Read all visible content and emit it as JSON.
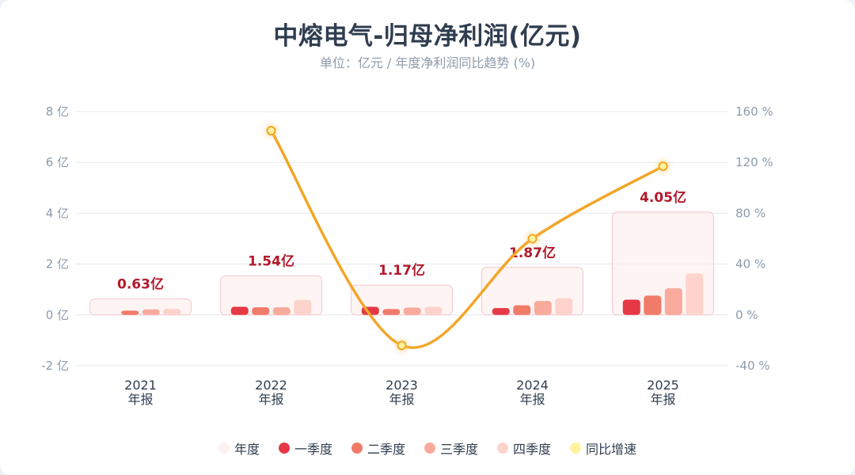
{
  "title": "中熔电气-归母净利润(亿元)",
  "subtitle": "单位：亿元 / 年度净利润同比趋势 (%)",
  "colors": {
    "annual_fill": "#fdeeee",
    "annual_stroke": "#f4c7cc",
    "q1": "#e63946",
    "q2": "#f07b68",
    "q3": "#f8ab9c",
    "q4": "#fdd3cc",
    "growth_line": "#f2a628",
    "growth_dot_fill": "#fff3a0",
    "annual_label": "#b3192b",
    "axis_label": "#8e9bab",
    "grid": "#e4e8ee"
  },
  "chart_data": {
    "type": "bar",
    "categories": [
      "2021",
      "2022",
      "2023",
      "2024",
      "2025"
    ],
    "category_sublabel": "年报",
    "left_axis": {
      "ticks": [
        "-2 亿",
        "0 亿",
        "2 亿",
        "4 亿",
        "6 亿",
        "8 亿"
      ],
      "ylim": [
        -2,
        8
      ]
    },
    "right_axis": {
      "ticks": [
        "-40 %",
        "0 %",
        "40 %",
        "80 %",
        "120 %",
        "160 %"
      ],
      "ylim": [
        -40,
        160
      ]
    },
    "annual_labels": [
      "0.63亿",
      "1.54亿",
      "1.17亿",
      "1.87亿",
      "4.05亿"
    ],
    "series": [
      {
        "name": "年度",
        "type": "bar",
        "values": [
          0.63,
          1.54,
          1.17,
          1.87,
          4.05
        ]
      },
      {
        "name": "一季度",
        "type": "bar",
        "values": [
          null,
          0.32,
          0.32,
          0.27,
          0.6
        ]
      },
      {
        "name": "二季度",
        "type": "bar",
        "values": [
          0.17,
          0.3,
          0.23,
          0.38,
          0.76
        ]
      },
      {
        "name": "三季度",
        "type": "bar",
        "values": [
          0.22,
          0.3,
          0.29,
          0.55,
          1.05
        ]
      },
      {
        "name": "四季度",
        "type": "bar",
        "values": [
          0.24,
          0.59,
          0.32,
          0.66,
          1.63
        ]
      },
      {
        "name": "同比增速",
        "type": "line",
        "axis": "right",
        "values": [
          null,
          145,
          -24,
          60,
          117
        ]
      }
    ],
    "legend": [
      "年度",
      "一季度",
      "二季度",
      "三季度",
      "四季度",
      "同比增速"
    ],
    "grid": true,
    "legend_position": "bottom"
  }
}
